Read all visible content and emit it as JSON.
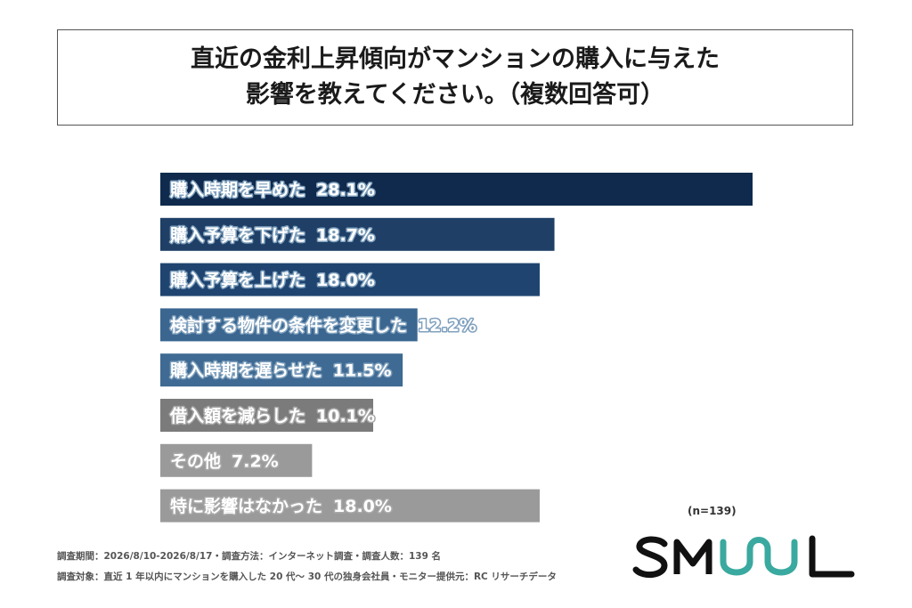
{
  "title": {
    "line1": "直近の金利上昇傾向がマンションの購入に与えた",
    "line2": "影響を教えてください。（複数回答可）"
  },
  "sample_size": "(n=139)",
  "footnotes": {
    "line1": "調査期間：2026/8/10-2026/8/17・調査方法：インターネット調査・調査人数：139 名",
    "line2": "調査対象：直近 1 年以内にマンションを購入した 20 代〜 30 代の独身会社員・モニター提供元：RC リサーチデータ"
  },
  "logo": {
    "text": "SMUUL",
    "colors": {
      "dark": "#111111",
      "teal": "#3aa99f"
    }
  },
  "colors": {
    "navy_dark": "#0f2a4d",
    "navy": "#1f3f66",
    "steel_blue": "#3a6690",
    "slate": "#5c7f9f",
    "gray_dark": "#7b7b7b",
    "gray": "#9a9a9a",
    "label_outline_light": "#7fa0bd",
    "label_outline_gray": "#a9a9a9"
  },
  "chart_data": {
    "type": "bar",
    "orientation": "horizontal",
    "value_unit": "%",
    "categories": [
      "購入時期を早めた",
      "購入予算を下げた",
      "購入予算を上げた",
      "検討する物件の条件を変更した",
      "購入時期を遅らせた",
      "借入額を減らした",
      "その他",
      "特に影響はなかった"
    ],
    "values": [
      28.1,
      18.7,
      18.0,
      12.2,
      11.5,
      10.1,
      7.2,
      18.0
    ],
    "value_labels": [
      "28.1%",
      "18.7%",
      "18.0%",
      "12.2%",
      "11.5%",
      "10.1%",
      "7.2%",
      "18.0%"
    ],
    "bar_colors": [
      "#0f2a4d",
      "#1f3f66",
      "#1f4470",
      "#3a6690",
      "#3f6a93",
      "#7b7b7b",
      "#9a9a9a",
      "#9a9a9a"
    ],
    "xlim": [
      0,
      28.1
    ],
    "grid": false,
    "legend": "none"
  }
}
